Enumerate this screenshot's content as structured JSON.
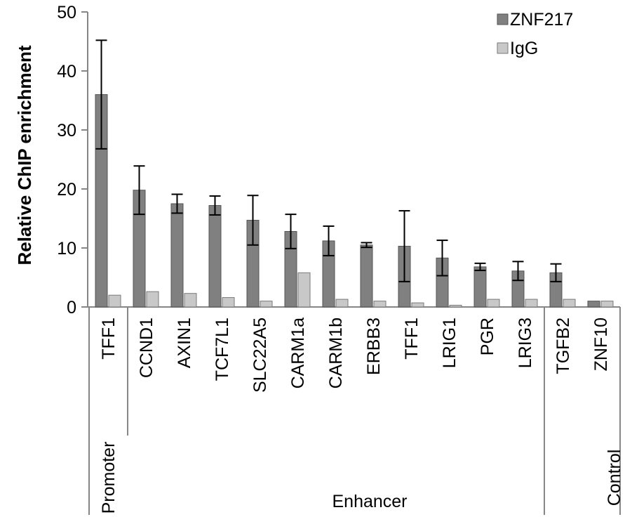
{
  "chart_data": {
    "type": "bar",
    "ylabel": "Relative ChIP enrichment",
    "ylim": [
      0,
      50
    ],
    "yticks": [
      0,
      10,
      20,
      30,
      40,
      50
    ],
    "categories": [
      "TFF1",
      "CCND1",
      "AXIN1",
      "TCF7L1",
      "SLC22A5",
      "CARM1a",
      "CARM1b",
      "ERBB3",
      "TFF1",
      "LRIG1",
      "PGR",
      "LRIG3",
      "TGFB2",
      "ZNF10"
    ],
    "series": [
      {
        "name": "ZNF217",
        "color": "#808080",
        "values": [
          36.0,
          19.8,
          17.5,
          17.2,
          14.7,
          12.8,
          11.2,
          10.5,
          10.3,
          8.3,
          6.8,
          6.1,
          5.8,
          1.0
        ],
        "errors": [
          9.2,
          4.1,
          1.6,
          1.6,
          4.2,
          2.9,
          2.5,
          0.4,
          6.0,
          3.0,
          0.6,
          1.6,
          1.5,
          0
        ]
      },
      {
        "name": "IgG",
        "color": "#c8c8c8",
        "values": [
          2.0,
          2.6,
          2.3,
          1.6,
          1.0,
          5.8,
          1.3,
          1.0,
          0.7,
          0.3,
          1.3,
          1.3,
          1.3,
          1.0
        ]
      }
    ],
    "groups": [
      {
        "label": "Promoter",
        "start": 0,
        "end": 0
      },
      {
        "label": "Enhancer",
        "start": 1,
        "end": 12
      },
      {
        "label": "Control",
        "start": 13,
        "end": 13
      }
    ],
    "legend": "top-right",
    "grid": false
  }
}
